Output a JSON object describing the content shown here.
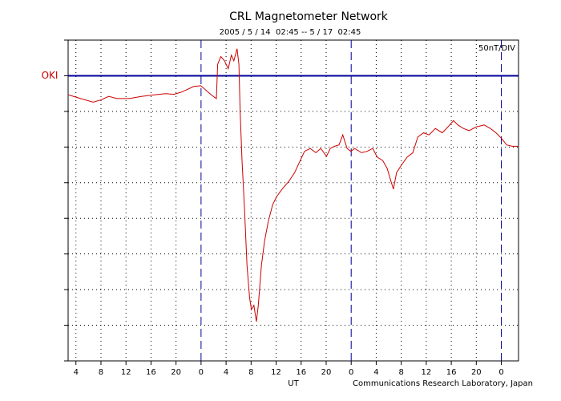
{
  "chart_data": {
    "type": "line",
    "title": "CRL Magnetometer Network",
    "subtitle": "2005 / 5 / 14  02:45 -- 5 / 17  02:45",
    "scale_label": "50nT/DIV",
    "xlabel": "UT",
    "credit": "Communications Research Laboratory, Japan",
    "baseline": 0,
    "baseline_color": "#000099",
    "grid": true,
    "xlim": [
      0,
      72
    ],
    "xticks": [
      {
        "value": 1.25,
        "label": "4"
      },
      {
        "value": 5.25,
        "label": "8"
      },
      {
        "value": 9.25,
        "label": "12"
      },
      {
        "value": 13.25,
        "label": "16"
      },
      {
        "value": 17.25,
        "label": "20"
      },
      {
        "value": 21.25,
        "label": "0"
      },
      {
        "value": 25.25,
        "label": "4"
      },
      {
        "value": 29.25,
        "label": "8"
      },
      {
        "value": 33.25,
        "label": "12"
      },
      {
        "value": 37.25,
        "label": "16"
      },
      {
        "value": 41.25,
        "label": "20"
      },
      {
        "value": 45.25,
        "label": "0"
      },
      {
        "value": 49.25,
        "label": "4"
      },
      {
        "value": 53.25,
        "label": "8"
      },
      {
        "value": 57.25,
        "label": "12"
      },
      {
        "value": 61.25,
        "label": "16"
      },
      {
        "value": 65.25,
        "label": "20"
      },
      {
        "value": 69.25,
        "label": "0"
      }
    ],
    "ylim": [
      -400,
      50
    ],
    "yticks": [
      -400,
      -350,
      -300,
      -250,
      -200,
      -150,
      -100,
      -50,
      0,
      50
    ],
    "x": [
      0.1,
      2.0,
      4.0,
      5.2,
      6.5,
      7.8,
      9.8,
      11.7,
      13.6,
      15.6,
      16.9,
      18.1,
      20.1,
      21.2,
      22.0,
      22.9,
      23.7,
      23.9,
      24.4,
      25.0,
      25.6,
      26.1,
      26.5,
      27.0,
      27.3,
      27.5,
      27.8,
      28.2,
      28.6,
      29.0,
      29.3,
      29.7,
      30.1,
      30.4,
      30.9,
      31.4,
      32.0,
      32.7,
      33.3,
      34.2,
      35.3,
      36.2,
      37.1,
      37.8,
      38.7,
      39.6,
      40.4,
      41.3,
      41.9,
      42.6,
      43.3,
      43.9,
      44.6,
      45.2,
      45.8,
      46.9,
      47.8,
      48.7,
      49.4,
      50.3,
      51.0,
      51.6,
      52.0,
      52.5,
      53.3,
      54.2,
      55.1,
      55.9,
      56.8,
      57.7,
      58.7,
      59.8,
      60.7,
      61.6,
      62.3,
      63.2,
      64.1,
      65.2,
      66.5,
      67.5,
      68.4,
      69.3,
      70.1,
      71.0,
      71.9
    ],
    "series": [
      {
        "name": "OKI",
        "color": "#cc0000",
        "values": [
          -27,
          -32,
          -37,
          -34,
          -29,
          -32,
          -32,
          -29,
          -27,
          -25,
          -26,
          -23,
          -15,
          -14,
          -20,
          -27,
          -32,
          16,
          27,
          21,
          10,
          29,
          21,
          38,
          16,
          -52,
          -119,
          -187,
          -266,
          -311,
          -328,
          -322,
          -345,
          -322,
          -266,
          -232,
          -204,
          -181,
          -170,
          -159,
          -148,
          -136,
          -119,
          -106,
          -102,
          -108,
          -102,
          -113,
          -102,
          -99,
          -97,
          -83,
          -102,
          -106,
          -102,
          -108,
          -106,
          -102,
          -114,
          -119,
          -130,
          -148,
          -159,
          -136,
          -125,
          -114,
          -108,
          -86,
          -80,
          -83,
          -74,
          -80,
          -72,
          -63,
          -69,
          -74,
          -77,
          -72,
          -69,
          -74,
          -80,
          -88,
          -97,
          -99,
          -99
        ]
      }
    ]
  }
}
